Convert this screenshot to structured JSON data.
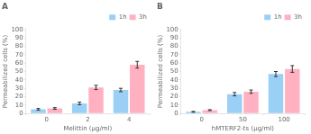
{
  "chart_data": [
    {
      "type": "bar",
      "title": "A",
      "xlabel": "Melittin (μg/ml)",
      "ylabel": "Permeabilized cells (%)",
      "categories": [
        "0",
        "2",
        "4"
      ],
      "series": [
        {
          "name": "1h",
          "values": [
            5,
            12,
            28
          ],
          "errors": [
            1.0,
            1.5,
            2.0
          ]
        },
        {
          "name": "3h",
          "values": [
            6,
            31,
            58
          ],
          "errors": [
            1.0,
            2.5,
            4.0
          ]
        }
      ],
      "ylim": [
        0,
        100
      ],
      "yticks": [
        0,
        10,
        20,
        30,
        40,
        50,
        60,
        70,
        80,
        90,
        100
      ],
      "grid": false,
      "legend": "upper right"
    },
    {
      "type": "bar",
      "title": "B",
      "xlabel": "hMTERF2-ts (μg/ml)",
      "ylabel": "Permeabilized cells (%)",
      "categories": [
        "0",
        "50",
        "100"
      ],
      "series": [
        {
          "name": "1h",
          "values": [
            2,
            23,
            47
          ],
          "errors": [
            0.5,
            2.0,
            3.0
          ]
        },
        {
          "name": "3h",
          "values": [
            4,
            26,
            53
          ],
          "errors": [
            0.5,
            2.0,
            4.0
          ]
        }
      ],
      "ylim": [
        0,
        100
      ],
      "yticks": [
        0,
        10,
        20,
        30,
        40,
        50,
        60,
        70,
        80,
        90,
        100
      ],
      "grid": false,
      "legend": "upper right"
    }
  ]
}
